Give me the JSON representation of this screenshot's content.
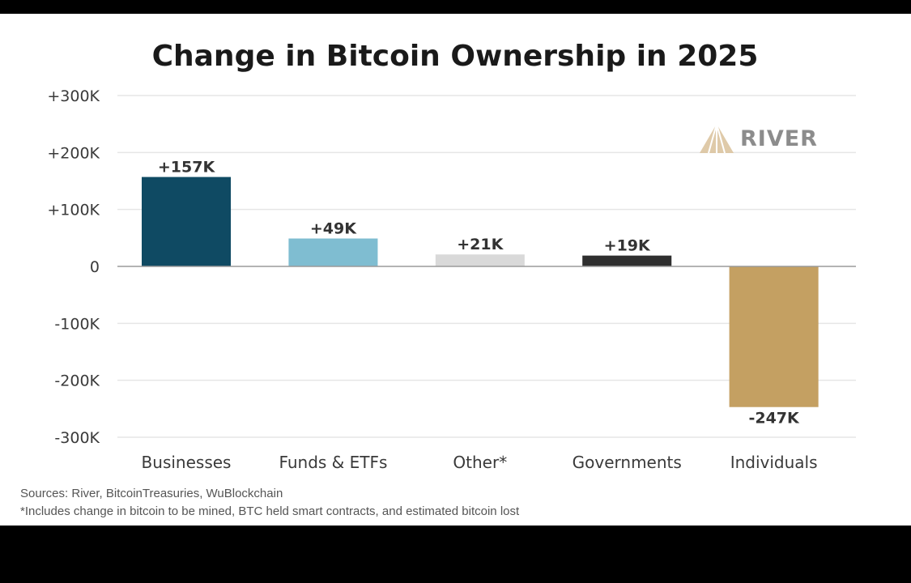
{
  "chart_data": {
    "type": "bar",
    "title": "Change in Bitcoin Ownership in 2025",
    "categories": [
      "Businesses",
      "Funds & ETFs",
      "Other*",
      "Governments",
      "Individuals"
    ],
    "values": [
      157000,
      49000,
      21000,
      19000,
      -247000
    ],
    "data_labels": [
      "+157K",
      "+49K",
      "+21K",
      "+19K",
      "-247K"
    ],
    "colors": [
      "#0f4a63",
      "#7fbdd1",
      "#d9d9d9",
      "#2f2f2f",
      "#c4a062"
    ],
    "ylim": [
      -300000,
      300000
    ],
    "yticks": [
      300000,
      200000,
      100000,
      0,
      -100000,
      -200000,
      -300000
    ],
    "ytick_labels": [
      "+300K",
      "+200K",
      "+100K",
      "0",
      "-100K",
      "-200K",
      "-300K"
    ],
    "xlabel": "",
    "ylabel": "",
    "grid": true,
    "gridline_color": "#e6e6e6",
    "zero_line_color": "#9a9a9a"
  },
  "brand": {
    "name": "RIVER",
    "logo_color": "#d9c19a"
  },
  "footer": {
    "sources": "Sources: River, BitcoinTreasuries, WuBlockchain",
    "footnote": "*Includes change in bitcoin to be mined, BTC held smart contracts, and estimated bitcoin lost"
  }
}
